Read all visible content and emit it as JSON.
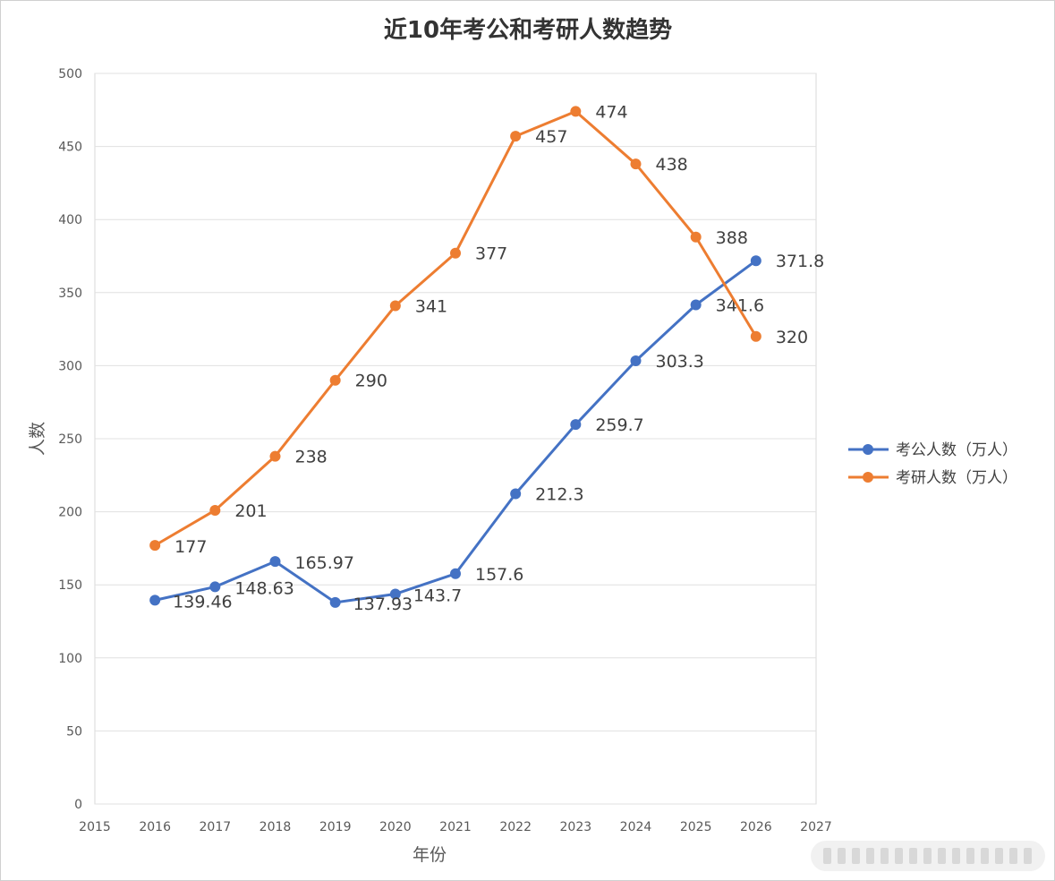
{
  "chart_data": {
    "type": "line",
    "title": "近10年考公和考研人数趋势",
    "xlabel": "年份",
    "ylabel": "人数",
    "xlim": [
      2015,
      2027
    ],
    "ylim": [
      0,
      500
    ],
    "xticks": [
      2015,
      2016,
      2017,
      2018,
      2019,
      2020,
      2021,
      2022,
      2023,
      2024,
      2025,
      2026,
      2027
    ],
    "yticks": [
      0,
      50,
      100,
      150,
      200,
      250,
      300,
      350,
      400,
      450,
      500
    ],
    "grid": true,
    "legend_position": "right",
    "x": [
      2016,
      2017,
      2018,
      2019,
      2020,
      2021,
      2022,
      2023,
      2024,
      2025,
      2026
    ],
    "series": [
      {
        "name": "考公人数（万人）",
        "color": "#4472c4",
        "values": [
          139.46,
          148.63,
          165.97,
          137.93,
          143.7,
          157.6,
          212.3,
          259.7,
          303.3,
          341.6,
          371.8
        ],
        "labels": [
          "139.46",
          "148.63",
          "165.97",
          "137.93",
          "143.7",
          "157.6",
          "212.3",
          "259.7",
          "303.3",
          "341.6",
          "371.8"
        ]
      },
      {
        "name": "考研人数（万人）",
        "color": "#ed7d31",
        "values": [
          177,
          201,
          238,
          290,
          341,
          377,
          457,
          474,
          438,
          388,
          320
        ],
        "labels": [
          "177",
          "201",
          "238",
          "290",
          "341",
          "377",
          "457",
          "474",
          "438",
          "388",
          "320"
        ]
      }
    ]
  }
}
